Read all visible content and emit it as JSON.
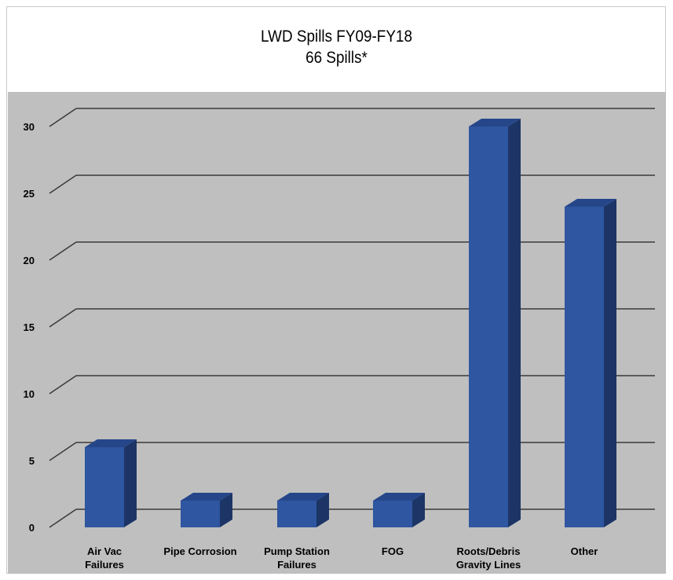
{
  "chart_data": {
    "type": "bar",
    "title": "LWD Spills FY09-FY18",
    "subtitle": "66 Spills*",
    "categories": [
      [
        "Air Vac",
        "Failures"
      ],
      [
        "Pipe Corrosion"
      ],
      [
        "Pump Station",
        "Failures"
      ],
      [
        "FOG"
      ],
      [
        "Roots/Debris",
        "Gravity Lines"
      ],
      [
        "Other"
      ]
    ],
    "values": [
      6,
      2,
      2,
      2,
      30,
      24
    ],
    "ylim": [
      0,
      30
    ],
    "yticks": [
      0,
      5,
      10,
      15,
      20,
      25,
      30
    ],
    "grid": true,
    "style": "3d-column",
    "colors": {
      "bar_front": "#2f56a0",
      "bar_top": "#26468a",
      "bar_side": "#1c3566",
      "plot_bg": "#bfbfbf",
      "grid": "#3a3a3a"
    }
  }
}
